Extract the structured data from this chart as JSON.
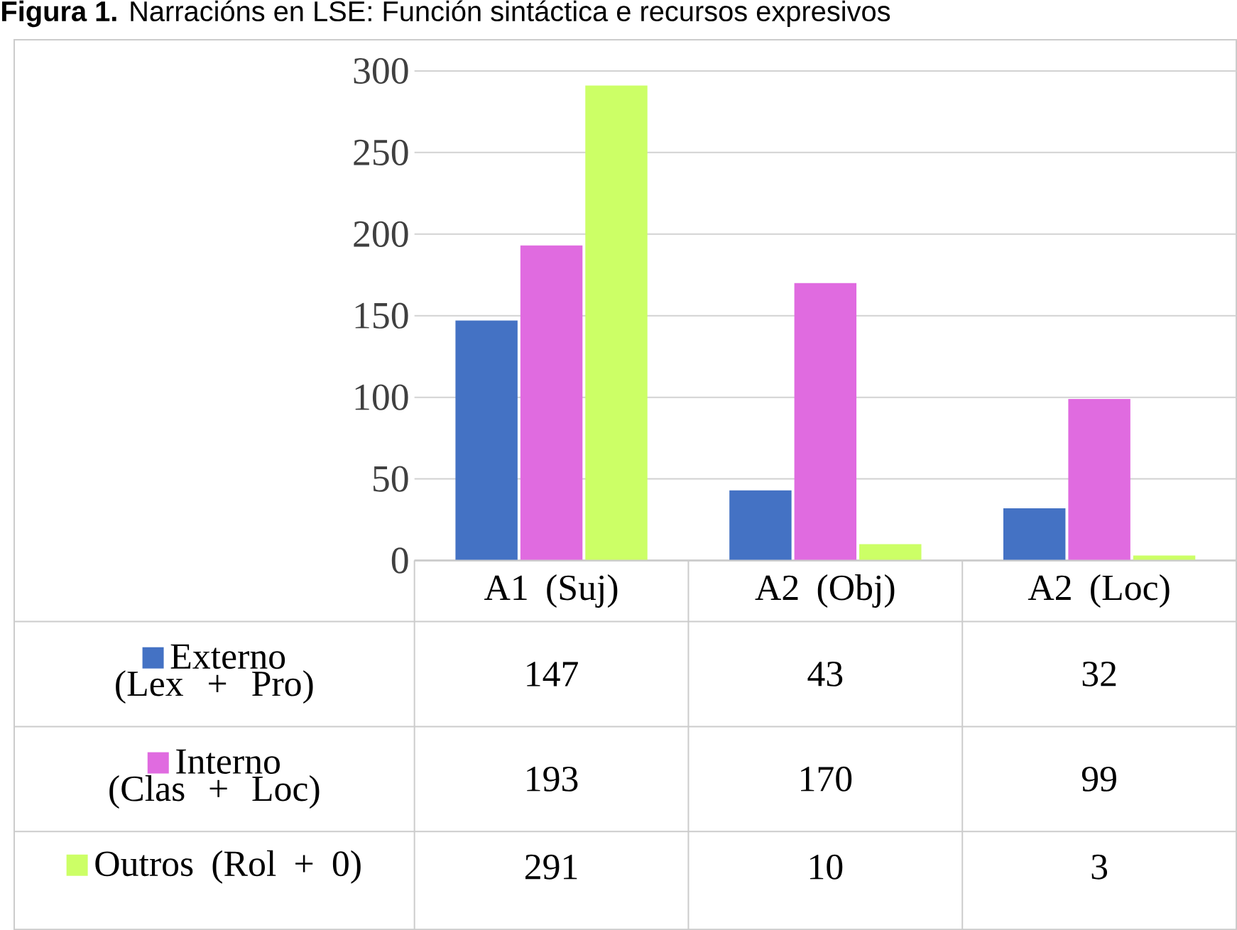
{
  "chart_data": {
    "type": "bar",
    "title": "**Figura 1.** Narracións en LSE: Función sintáctica e recursos expresivos",
    "categories": [
      "A1 (Suj)",
      "A2 (Obj)",
      "A2 (Loc)"
    ],
    "series": [
      {
        "name": "Externo (Lex + Pro)",
        "color": "#4472c4",
        "values": [
          147,
          43,
          32
        ]
      },
      {
        "name": "Interno (Clas + Loc)",
        "color": "#e06be0",
        "values": [
          193,
          170,
          99
        ]
      },
      {
        "name": "Outros (Rol + 0)",
        "color": "#ccff66",
        "values": [
          291,
          10,
          3
        ]
      }
    ],
    "ylim": [
      0,
      300
    ],
    "yticks": [
      0,
      50,
      100,
      150,
      200,
      250,
      300
    ],
    "grid": "y",
    "legend": "bottom",
    "data_labels": true
  }
}
